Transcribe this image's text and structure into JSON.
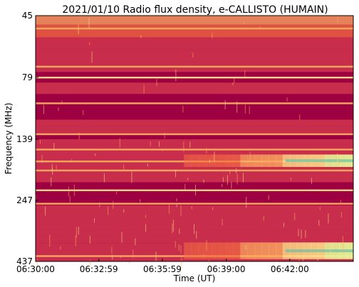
{
  "chart_data": {
    "type": "heatmap",
    "title": "2021/01/10  Radio flux density, e-CALLISTO (HUMAIN)",
    "xlabel": "Time (UT)",
    "ylabel": "Frequency (MHz)",
    "x_ticks": [
      "06:30:00",
      "06:32:59",
      "06:35:59",
      "06:39:00",
      "06:42:00"
    ],
    "x_tick_positions_seconds": [
      0,
      179,
      359,
      540,
      720
    ],
    "x_range_seconds": [
      0,
      900
    ],
    "y_ticks": [
      "45",
      "79",
      "139",
      "247",
      "437"
    ],
    "y_range_mhz": [
      45,
      437
    ],
    "colormap": "Spectral_r",
    "colors": {
      "background": "#9e0142",
      "mid": "#d53e4f",
      "warm": "#f46d43",
      "hot": "#fdae61",
      "bright": "#fee08b",
      "peak": "#e6f598",
      "extreme": "#66c2a5"
    },
    "bright_lines_mhz": [
      52,
      73,
      79,
      104,
      134,
      157,
      178,
      194,
      229,
      257,
      420
    ],
    "burst": {
      "start_seconds": 420,
      "bands_mhz": [
        [
          166,
          188
        ],
        [
          378,
          430
        ]
      ]
    }
  }
}
